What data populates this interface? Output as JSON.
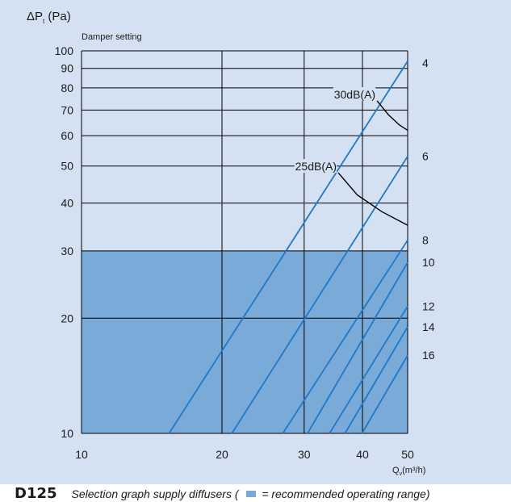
{
  "chart_data": {
    "type": "line",
    "title": "",
    "ylabel_main": "ΔP",
    "ylabel_sub": "t",
    "ylabel_unit": "(Pa)",
    "ylabel2": "Damper setting",
    "xlabel_main": "Q",
    "xlabel_sub": "v",
    "xlabel_unit": "(m³/h)",
    "x_scale": "log",
    "y_scale": "log",
    "xlim": [
      10,
      50
    ],
    "ylim": [
      10,
      100
    ],
    "x_ticks": [
      "10",
      "20",
      "30",
      "40",
      "50"
    ],
    "y_ticks": [
      "10",
      "20",
      "30",
      "40",
      "50",
      "60",
      "70",
      "80",
      "90",
      "100"
    ],
    "grid": true,
    "recommended_range": {
      "y_max": 30,
      "color": "#7aaad8"
    },
    "series": [
      {
        "name": "4",
        "x": [
          15.4,
          50
        ],
        "y": [
          10,
          94
        ]
      },
      {
        "name": "6",
        "x": [
          21.0,
          50
        ],
        "y": [
          10,
          53
        ]
      },
      {
        "name": "8",
        "x": [
          27.0,
          50
        ],
        "y": [
          10,
          32
        ]
      },
      {
        "name": "10",
        "x": [
          30.5,
          50
        ],
        "y": [
          10,
          28
        ]
      },
      {
        "name": "12",
        "x": [
          34.0,
          50
        ],
        "y": [
          10,
          21.5
        ]
      },
      {
        "name": "14",
        "x": [
          36.7,
          50
        ],
        "y": [
          10,
          19
        ]
      },
      {
        "name": "16",
        "x": [
          39.9,
          50
        ],
        "y": [
          10,
          16
        ]
      }
    ],
    "noise_curves": [
      {
        "label": "30dB(A)",
        "x": [
          43.0,
          45.5,
          48.0,
          50
        ],
        "y": [
          74,
          68,
          64,
          62
        ]
      },
      {
        "label": "25dB(A)",
        "x": [
          35.5,
          39.0,
          44.0,
          50
        ],
        "y": [
          48,
          42,
          38,
          35
        ]
      }
    ],
    "colors": {
      "line": "#1f78c8",
      "curve": "#000000",
      "grid": "#000000"
    }
  },
  "caption": {
    "title": "D125",
    "text_before": "Selection graph supply diffusers  ( ",
    "text_after": " = recommended operating range)"
  }
}
